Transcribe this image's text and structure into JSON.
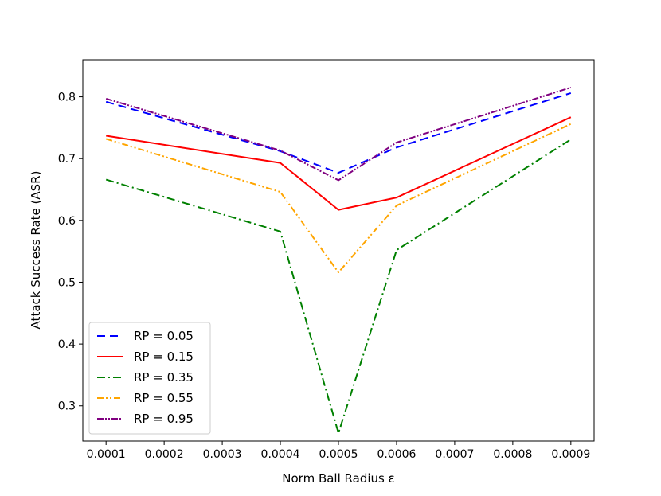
{
  "chart_data": {
    "type": "line",
    "title": "",
    "xlabel": "Norm Ball Radius ε",
    "ylabel": "Attack Success Rate (ASR)",
    "x": [
      0.0001,
      0.0004,
      0.0005,
      0.0006,
      0.0009
    ],
    "xlim": [
      6e-05,
      0.00094
    ],
    "ylim": [
      0.243,
      0.86
    ],
    "xticks": [
      0.0001,
      0.0002,
      0.0003,
      0.0004,
      0.0005,
      0.0006,
      0.0007,
      0.0008,
      0.0009
    ],
    "xtick_labels": [
      "0.0001",
      "0.0002",
      "0.0003",
      "0.0004",
      "0.0005",
      "0.0006",
      "0.0007",
      "0.0008",
      "0.0009"
    ],
    "yticks": [
      0.3,
      0.4,
      0.5,
      0.6,
      0.7,
      0.8
    ],
    "ytick_labels": [
      "0.3",
      "0.4",
      "0.5",
      "0.6",
      "0.7",
      "0.8"
    ],
    "grid": false,
    "legend_position": "lower-left",
    "series": [
      {
        "name": "RP = 0.05",
        "values": [
          0.792,
          0.712,
          0.677,
          0.718,
          0.806
        ],
        "color": "#0000ff",
        "dash": "10,6"
      },
      {
        "name": "RP = 0.15",
        "values": [
          0.737,
          0.693,
          0.617,
          0.637,
          0.767
        ],
        "color": "#ff0000",
        "dash": ""
      },
      {
        "name": "RP = 0.35",
        "values": [
          0.666,
          0.582,
          0.256,
          0.552,
          0.731
        ],
        "color": "#008000",
        "dash": "10,4,2,4"
      },
      {
        "name": "RP = 0.55",
        "values": [
          0.732,
          0.646,
          0.516,
          0.624,
          0.756
        ],
        "color": "#ffa500",
        "dash": "8,3,2,3,2,3"
      },
      {
        "name": "RP = 0.95",
        "values": [
          0.797,
          0.713,
          0.665,
          0.726,
          0.815
        ],
        "color": "#800080",
        "dash": "8,2,2,2,2,2"
      }
    ]
  }
}
